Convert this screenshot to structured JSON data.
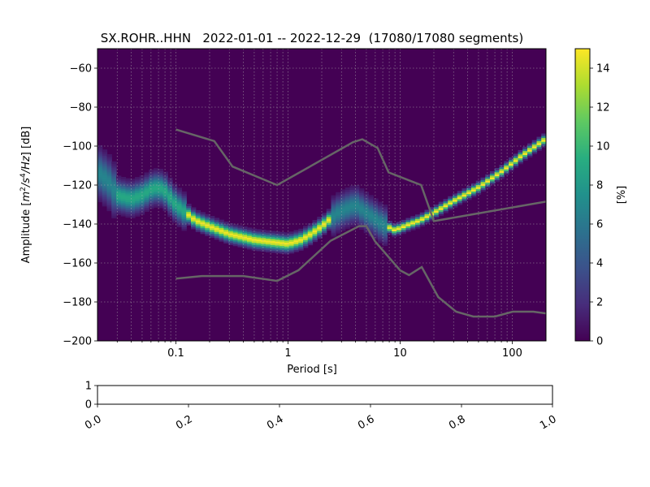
{
  "chart_data": [
    {
      "type": "heatmap",
      "title": "SX.ROHR..HHN   2022-01-01 -- 2022-12-29  (17080/17080 segments)",
      "xlabel": "Period [s]",
      "ylabel_parts": [
        "Amplitude [",
        "m",
        "2",
        "/",
        "s",
        "4",
        "/",
        "Hz",
        "] [dB]"
      ],
      "xscale": "log",
      "xlim": [
        0.02,
        200
      ],
      "ylim": [
        -200,
        -50
      ],
      "xticks": [
        {
          "value": 0.1,
          "label": "0.1"
        },
        {
          "value": 1,
          "label": "1"
        },
        {
          "value": 10,
          "label": "10"
        },
        {
          "value": 100,
          "label": "100"
        }
      ],
      "yticks": [
        {
          "value": -60,
          "label": "−60"
        },
        {
          "value": -80,
          "label": "−80"
        },
        {
          "value": -100,
          "label": "−100"
        },
        {
          "value": -120,
          "label": "−120"
        },
        {
          "value": -140,
          "label": "−140"
        },
        {
          "value": -160,
          "label": "−160"
        },
        {
          "value": -180,
          "label": "−180"
        },
        {
          "value": -200,
          "label": "−200"
        }
      ],
      "grid": true,
      "colormap": "viridis",
      "background_color": "#440154",
      "psd_mode": [
        [
          0.02,
          -113
        ],
        [
          0.025,
          -118
        ],
        [
          0.03,
          -125
        ],
        [
          0.04,
          -127
        ],
        [
          0.05,
          -125
        ],
        [
          0.06,
          -122
        ],
        [
          0.07,
          -121
        ],
        [
          0.08,
          -123
        ],
        [
          0.1,
          -130
        ],
        [
          0.15,
          -138
        ],
        [
          0.2,
          -141
        ],
        [
          0.3,
          -145
        ],
        [
          0.5,
          -148
        ],
        [
          0.7,
          -149
        ],
        [
          1,
          -150
        ],
        [
          1.3,
          -148
        ],
        [
          1.6,
          -145
        ],
        [
          2,
          -141
        ],
        [
          2.5,
          -136
        ],
        [
          3,
          -133
        ],
        [
          4,
          -130
        ],
        [
          5,
          -134
        ],
        [
          7,
          -140
        ],
        [
          9,
          -143
        ],
        [
          12,
          -140
        ],
        [
          15,
          -138
        ],
        [
          20,
          -134
        ],
        [
          30,
          -128
        ],
        [
          50,
          -121
        ],
        [
          80,
          -113
        ],
        [
          120,
          -105
        ],
        [
          200,
          -96
        ]
      ],
      "noise_models": {
        "color": "#666666",
        "nhnm": [
          [
            0.1,
            -91.5
          ],
          [
            0.22,
            -97.4
          ],
          [
            0.32,
            -110.5
          ],
          [
            0.8,
            -120
          ],
          [
            3.8,
            -98
          ],
          [
            4.6,
            -96.5
          ],
          [
            6.3,
            -101
          ],
          [
            7.9,
            -113.5
          ],
          [
            15.4,
            -120
          ],
          [
            20,
            -138.5
          ],
          [
            354.8,
            -126
          ]
        ],
        "nlnm": [
          [
            0.1,
            -168
          ],
          [
            0.17,
            -166.7
          ],
          [
            0.4,
            -166.7
          ],
          [
            0.8,
            -169.2
          ],
          [
            1.24,
            -163.7
          ],
          [
            2.4,
            -148.6
          ],
          [
            4.3,
            -141.1
          ],
          [
            5,
            -141.1
          ],
          [
            6,
            -149
          ],
          [
            10,
            -163.8
          ],
          [
            12,
            -166.2
          ],
          [
            15.6,
            -162.1
          ],
          [
            21.9,
            -177.5
          ],
          [
            31.6,
            -185
          ],
          [
            45,
            -187.5
          ],
          [
            70,
            -187.5
          ],
          [
            101,
            -185
          ],
          [
            154,
            -185
          ],
          [
            328,
            -187.5
          ]
        ]
      },
      "colorbar": {
        "label": "[%]",
        "range": [
          0,
          15
        ],
        "ticks": [
          "0",
          "2",
          "4",
          "6",
          "8",
          "10",
          "12",
          "14"
        ]
      }
    },
    {
      "type": "line",
      "title": "",
      "xlim": [
        0,
        1
      ],
      "ylim": [
        0,
        1
      ],
      "xticks": [
        "0.0",
        "0.2",
        "0.4",
        "0.6",
        "0.8",
        "1.0"
      ],
      "yticks": [
        "0",
        "1"
      ]
    }
  ]
}
